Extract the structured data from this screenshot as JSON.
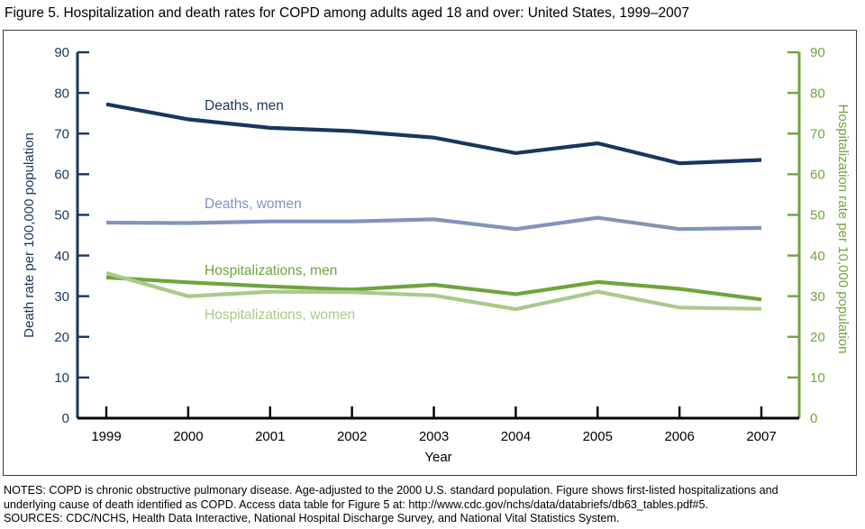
{
  "figure": {
    "title": "Figure 5. Hospitalization and death rates for COPD among adults aged 18 and over: United States, 1999–2007"
  },
  "chart_data": {
    "type": "line",
    "x": [
      1999,
      2000,
      2001,
      2002,
      2003,
      2004,
      2005,
      2006,
      2007
    ],
    "xlabel": "Year",
    "grid": false,
    "legend": "inline-labels",
    "left_axis": {
      "label": "Death rate per 100,000 population",
      "range": [
        0,
        90
      ],
      "tick_step": 10,
      "color": "#17375E"
    },
    "right_axis": {
      "label": "Hospitalization rate per 10,000 population",
      "range": [
        0,
        90
      ],
      "tick_step": 10,
      "color": "#6FA53C"
    },
    "x_axis_color": "#000000",
    "series": [
      {
        "name": "Deaths, men",
        "axis": "left",
        "color": "#17375E",
        "values": [
          77.2,
          73.5,
          71.4,
          70.6,
          69.0,
          65.2,
          67.6,
          62.7,
          63.5
        ]
      },
      {
        "name": "Deaths, women",
        "axis": "left",
        "color": "#8094BD",
        "values": [
          48.1,
          48.0,
          48.4,
          48.4,
          48.9,
          46.5,
          49.3,
          46.5,
          46.8
        ]
      },
      {
        "name": "Hospitalizations, men",
        "axis": "right",
        "color": "#6FA53C",
        "values": [
          34.6,
          33.4,
          32.4,
          31.6,
          32.8,
          30.5,
          33.5,
          31.8,
          29.2
        ]
      },
      {
        "name": "Hospitalizations, women",
        "axis": "right",
        "color": "#A9CA8B",
        "values": [
          35.7,
          30.0,
          31.1,
          31.0,
          30.2,
          26.8,
          31.1,
          27.2,
          26.9
        ]
      }
    ]
  },
  "notes": {
    "line1": "NOTES: COPD is chronic obstructive pulmonary disease. Age-adjusted to the 2000 U.S. standard population. Figure shows first-listed hospitalizations and",
    "line2": "underlying cause of death identified as COPD. Access data table for Figure 5 at: http://www.cdc.gov/nchs/data/databriefs/db63_tables.pdf#5.",
    "sources": "SOURCES: CDC/NCHS, Health Data Interactive, National Hospital Discharge Survey, and National Vital Statistics System."
  }
}
